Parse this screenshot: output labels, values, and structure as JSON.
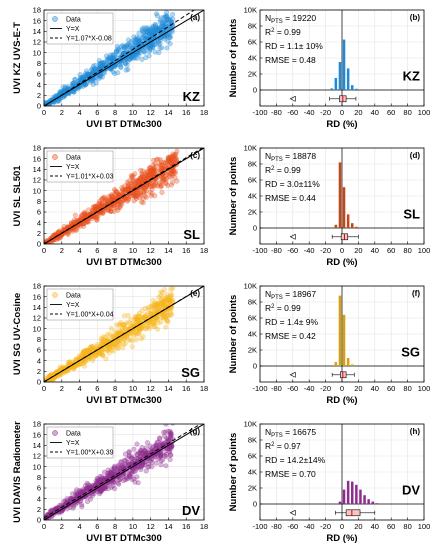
{
  "chart_data": [
    {
      "type": "scatter",
      "panel": "(a)",
      "site": "KZ",
      "xlabel": "UVI BT DTMc300",
      "ylabel": "UVI  KZ UVS-E-T",
      "xlim": [
        0,
        18
      ],
      "ylim": [
        0,
        18
      ],
      "xticks": [
        "0",
        "2",
        "4",
        "6",
        "8",
        "10",
        "12",
        "14",
        "16",
        "18"
      ],
      "yticks": [
        "0",
        "2",
        "4",
        "6",
        "8",
        "10",
        "12",
        "14",
        "16",
        "18"
      ],
      "legend": [
        "Data",
        "Y=X",
        "Y=1.07*X-0.08"
      ],
      "fit": {
        "slope": 1.07,
        "intercept": -0.08
      },
      "color": "#1f8ad6",
      "xmax_data": 14.5
    },
    {
      "type": "bar",
      "panel": "(b)",
      "site": "KZ",
      "xlabel": "RD (%)",
      "ylabel": "Number of points",
      "xlim": [
        -100,
        100
      ],
      "ylim": [
        -2000,
        10000
      ],
      "xticks": [
        "-100",
        "-80",
        "-60",
        "-40",
        "-20",
        "0",
        "20",
        "40",
        "60",
        "80",
        "100"
      ],
      "yticks": [
        "0",
        "2K",
        "4K",
        "6K",
        "8K",
        "10K"
      ],
      "stats": {
        "npts": "= 19220",
        "r2": "= 0.99",
        "rd": "RD = 1.1± 10%",
        "rmse": "RMSE = 0.48"
      },
      "bins_x": [
        -12.5,
        -7.5,
        -2.5,
        2.5,
        7.5,
        12.5,
        17.5
      ],
      "bins_y": [
        200,
        1500,
        3500,
        6300,
        2700,
        600,
        150
      ],
      "box": {
        "q1": -3,
        "median": 1,
        "q3": 5,
        "wmin": -15,
        "wmax": 17,
        "outlier": -60
      },
      "color": "#1f8ad6"
    },
    {
      "type": "scatter",
      "panel": "(c)",
      "site": "SL",
      "xlabel": "UVI BT DTMc300",
      "ylabel": "UVI  SL SL501",
      "xlim": [
        0,
        18
      ],
      "ylim": [
        0,
        18
      ],
      "xticks": [
        "0",
        "2",
        "4",
        "6",
        "8",
        "10",
        "12",
        "14",
        "16",
        "18"
      ],
      "yticks": [
        "0",
        "2",
        "4",
        "6",
        "8",
        "10",
        "12",
        "14",
        "16",
        "18"
      ],
      "legend": [
        "Data",
        "Y=X",
        "Y=1.01*X+0.03"
      ],
      "fit": {
        "slope": 1.01,
        "intercept": 0.03
      },
      "color": "#e8501e",
      "xmax_data": 15
    },
    {
      "type": "bar",
      "panel": "(d)",
      "site": "SL",
      "xlabel": "RD (%)",
      "ylabel": "Number of points",
      "xlim": [
        -100,
        100
      ],
      "ylim": [
        -2000,
        10000
      ],
      "xticks": [
        "-100",
        "-80",
        "-60",
        "-40",
        "-20",
        "0",
        "20",
        "40",
        "60",
        "80",
        "100"
      ],
      "yticks": [
        "0",
        "2K",
        "4K",
        "6K",
        "8K",
        "10K"
      ],
      "stats": {
        "npts": "= 18878",
        "r2": "= 0.99",
        "rd": "RD = 3.0±11%",
        "rmse": "RMSE = 0.44"
      },
      "bins_x": [
        -7.5,
        -2.5,
        2.5,
        7.5,
        12.5,
        17.5
      ],
      "bins_y": [
        400,
        8200,
        5100,
        1700,
        600,
        150
      ],
      "box": {
        "q1": -1,
        "median": 3,
        "q3": 7,
        "wmin": -12,
        "wmax": 20,
        "outlier": -60
      },
      "color": "#c2481a"
    },
    {
      "type": "scatter",
      "panel": "(e)",
      "site": "SG",
      "xlabel": "UVI BT DTMc300",
      "ylabel": "UVI  SG UV-Cosine",
      "xlim": [
        0,
        18
      ],
      "ylim": [
        0,
        18
      ],
      "xticks": [
        "0",
        "2",
        "4",
        "6",
        "8",
        "10",
        "12",
        "14",
        "16",
        "18"
      ],
      "yticks": [
        "0",
        "2",
        "4",
        "6",
        "8",
        "10",
        "12",
        "14",
        "16",
        "18"
      ],
      "legend": [
        "Data",
        "Y=X",
        "Y=1.00*X+0.04"
      ],
      "fit": {
        "slope": 1.0,
        "intercept": 0.04
      },
      "color": "#f5b51e",
      "xmax_data": 14.5
    },
    {
      "type": "bar",
      "panel": "(f)",
      "site": "SG",
      "xlabel": "RD (%)",
      "ylabel": "Number of points",
      "xlim": [
        -100,
        100
      ],
      "ylim": [
        -2000,
        10000
      ],
      "xticks": [
        "-100",
        "-80",
        "-60",
        "-40",
        "-20",
        "0",
        "20",
        "40",
        "60",
        "80",
        "100"
      ],
      "yticks": [
        "0",
        "2K",
        "4K",
        "6K",
        "8K",
        "10K"
      ],
      "stats": {
        "npts": "= 18967",
        "r2": "= 0.99",
        "rd": "RD = 1.4± 9%",
        "rmse": "RMSE = 0.42"
      },
      "bins_x": [
        -7.5,
        -2.5,
        2.5,
        7.5,
        12.5
      ],
      "bins_y": [
        500,
        8800,
        6400,
        1000,
        200
      ],
      "box": {
        "q1": -2,
        "median": 1,
        "q3": 5,
        "wmin": -12,
        "wmax": 15,
        "outlier": -60
      },
      "color": "#d6a010"
    },
    {
      "type": "scatter",
      "panel": "(g)",
      "site": "DV",
      "xlabel": "UVI BT DTMc300",
      "ylabel": "UVI DAVIS Radiometer",
      "xlim": [
        0,
        18
      ],
      "ylim": [
        0,
        18
      ],
      "xticks": [
        "0",
        "2",
        "4",
        "6",
        "8",
        "10",
        "12",
        "14",
        "16",
        "18"
      ],
      "yticks": [
        "0",
        "2",
        "4",
        "6",
        "8",
        "10",
        "12",
        "14",
        "16",
        "18"
      ],
      "legend": [
        "Data",
        "Y=X",
        "Y=1.00*X+0.39"
      ],
      "fit": {
        "slope": 1.0,
        "intercept": 0.39
      },
      "color": "#8e2d8e",
      "xmax_data": 14.5
    },
    {
      "type": "bar",
      "panel": "(h)",
      "site": "DV",
      "xlabel": "RD (%)",
      "ylabel": "Number of points",
      "xlim": [
        -100,
        100
      ],
      "ylim": [
        -2000,
        10000
      ],
      "xticks": [
        "-100",
        "-80",
        "-60",
        "-40",
        "-20",
        "0",
        "20",
        "40",
        "60",
        "80",
        "100"
      ],
      "yticks": [
        "0",
        "2K",
        "4K",
        "6K",
        "8K",
        "10K"
      ],
      "stats": {
        "npts": "= 16675",
        "r2": "= 0.97",
        "rd": "RD = 14.2±14%",
        "rmse": "RMSE = 0.70"
      },
      "bins_x": [
        -2.5,
        2.5,
        7.5,
        12.5,
        17.5,
        22.5,
        27.5,
        32.5,
        37.5,
        42.5
      ],
      "bins_y": [
        300,
        1800,
        2900,
        2800,
        2400,
        1800,
        1100,
        600,
        300,
        100
      ],
      "box": {
        "q1": 5,
        "median": 12,
        "q3": 22,
        "wmin": -8,
        "wmax": 40,
        "outlier": -60
      },
      "color": "#8e2d8e"
    }
  ]
}
